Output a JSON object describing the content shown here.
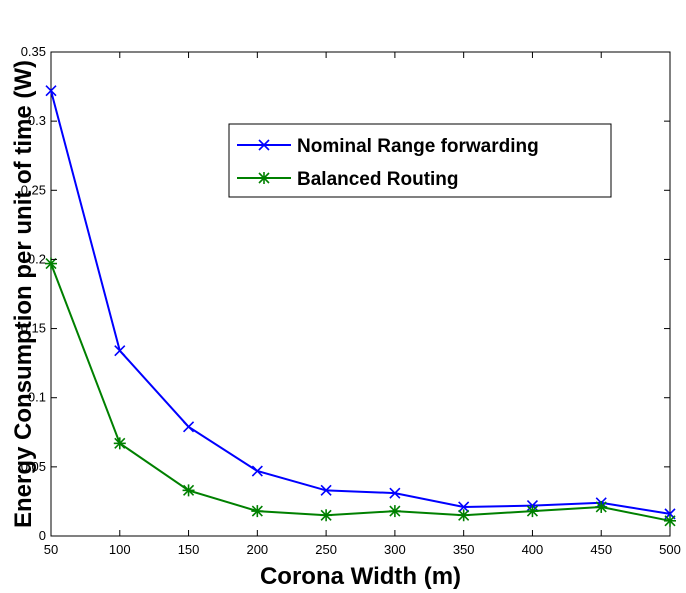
{
  "chart_data": {
    "type": "line",
    "title": "",
    "xlabel": "Corona Width (m)",
    "ylabel": "Energy Consumption per unit of time (W)",
    "xlim": [
      50,
      500
    ],
    "ylim": [
      0,
      0.35
    ],
    "x_ticks": [
      "50",
      "100",
      "150",
      "200",
      "250",
      "300",
      "350",
      "400",
      "450",
      "500"
    ],
    "y_ticks": [
      "0",
      "0.05",
      "0.1",
      "0.15",
      "0.2",
      "0.25",
      "0.3",
      "0.35"
    ],
    "grid": false,
    "legend_position": "top-right",
    "x": [
      50,
      100,
      150,
      200,
      250,
      300,
      350,
      400,
      450,
      500
    ],
    "series": [
      {
        "name": "Nominal Range forwarding",
        "color": "#0000ff",
        "marker": "x",
        "values": [
          0.322,
          0.134,
          0.079,
          0.047,
          0.033,
          0.031,
          0.021,
          0.022,
          0.024,
          0.016
        ]
      },
      {
        "name": "Balanced Routing",
        "color": "#008000",
        "marker": "asterisk",
        "values": [
          0.197,
          0.067,
          0.033,
          0.018,
          0.015,
          0.018,
          0.015,
          0.018,
          0.021,
          0.011
        ]
      }
    ]
  }
}
